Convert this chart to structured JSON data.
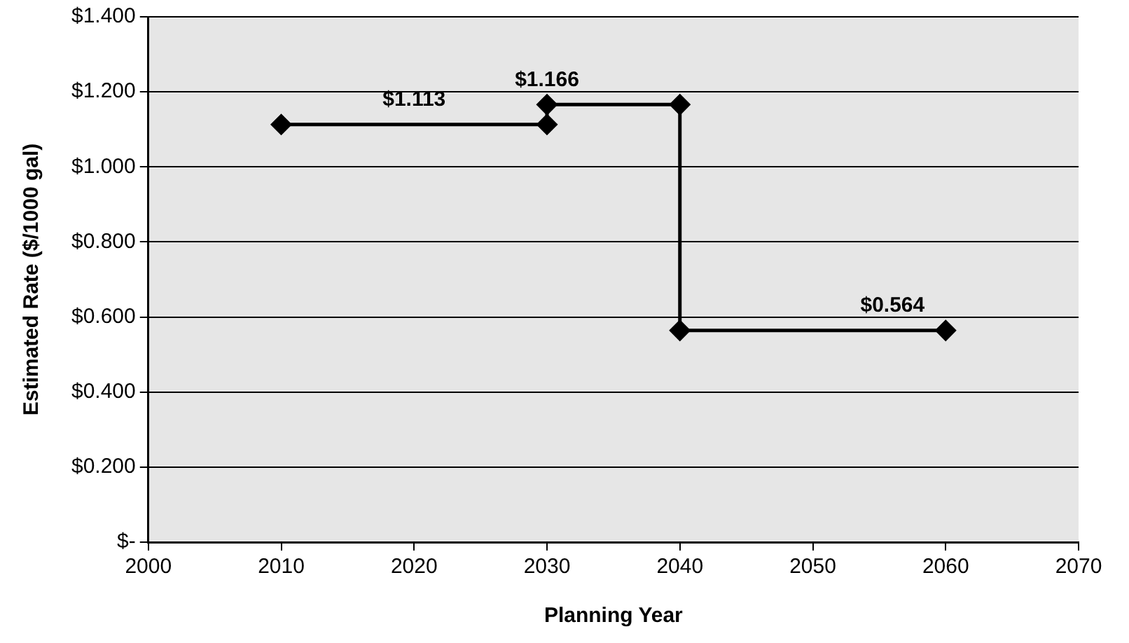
{
  "chart_data": {
    "type": "line",
    "xlabel": "Planning Year",
    "ylabel": "Estimated Rate ($/1000 gal)",
    "x": [
      2010,
      2030,
      2030,
      2040,
      2040,
      2060
    ],
    "series": [
      {
        "color": "#000000",
        "values": [
          1.113,
          1.113,
          1.166,
          1.166,
          0.564,
          0.564
        ]
      }
    ],
    "xlim": [
      2000,
      2070
    ],
    "xticks": [
      2000,
      2010,
      2020,
      2030,
      2040,
      2050,
      2060,
      2070
    ],
    "ylim": [
      0,
      1.4
    ],
    "yticks": [
      {
        "value": 0,
        "label": "$-"
      },
      {
        "value": 0.2,
        "label": "$0.200"
      },
      {
        "value": 0.4,
        "label": "$0.400"
      },
      {
        "value": 0.6,
        "label": "$0.600"
      },
      {
        "value": 0.8,
        "label": "$0.800"
      },
      {
        "value": 1.0,
        "label": "$1.000"
      },
      {
        "value": 1.2,
        "label": "$1.200"
      },
      {
        "value": 1.4,
        "label": "$1.400"
      }
    ],
    "grid": "y",
    "legend": false,
    "marker": "diamond",
    "line_style": "solid",
    "annotations": [
      {
        "text": "$1.113",
        "x": 2020,
        "y": 1.113
      },
      {
        "text": "$1.166",
        "x": 2030,
        "y": 1.166
      },
      {
        "text": "$0.564",
        "x": 2056,
        "y": 0.564
      }
    ]
  }
}
